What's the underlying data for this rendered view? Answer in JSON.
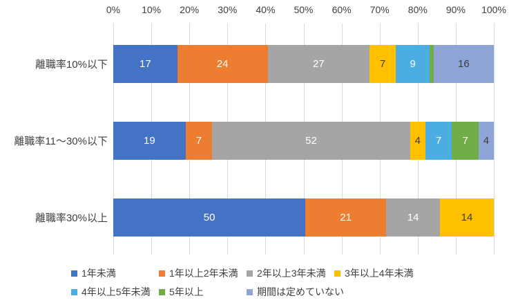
{
  "chart_data": {
    "type": "bar",
    "stacked": true,
    "orientation": "horizontal",
    "percent_axis": true,
    "title": "",
    "grid": true,
    "legend_position": "bottom",
    "xlim": [
      0,
      100
    ],
    "x_ticks": [
      "0%",
      "10%",
      "20%",
      "30%",
      "40%",
      "50%",
      "60%",
      "70%",
      "80%",
      "90%",
      "100%"
    ],
    "categories": [
      "離職率10%以下",
      "離職率11～30%以下",
      "離職率30%以上"
    ],
    "series": [
      {
        "name": "1年未満",
        "color": "#4472C4",
        "label_color": "#FFFFFF",
        "values": [
          17,
          19,
          50
        ]
      },
      {
        "name": "1年以上2年未満",
        "color": "#ED7D31",
        "label_color": "#FFFFFF",
        "values": [
          24,
          7,
          21
        ]
      },
      {
        "name": "2年以上3年未満",
        "color": "#A5A5A5",
        "label_color": "#FFFFFF",
        "values": [
          27,
          52,
          14
        ]
      },
      {
        "name": "3年以上4年未満",
        "color": "#FFC000",
        "label_color": "#3B3B3B",
        "values": [
          7,
          4,
          14
        ]
      },
      {
        "name": "4年以上5年未満",
        "color": "#4BADE2",
        "label_color": "#FFFFFF",
        "values": [
          9,
          7,
          0
        ]
      },
      {
        "name": "5年以上",
        "color": "#70AD47",
        "label_color": "#FFFFFF",
        "values": [
          1,
          7,
          0
        ]
      },
      {
        "name": "期間は定めていない",
        "color": "#8FA5D8",
        "label_color": "#3B3B3B",
        "values": [
          16,
          4,
          0
        ]
      }
    ],
    "notes": "row-1 green segment (5年以上, value 1) is too narrow for a visible data label"
  },
  "colors": {
    "axis_text": "#404040",
    "gridline": "#D9D9D9"
  }
}
